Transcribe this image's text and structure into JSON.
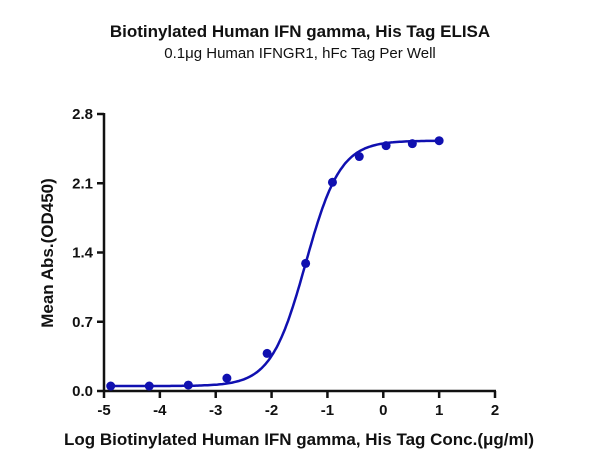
{
  "chart_data": {
    "type": "scatter",
    "title": "Biotinylated Human IFN gamma, His Tag ELISA",
    "subtitle": "0.1μg Human IFNGR1, hFc Tag Per Well",
    "xlabel": "Log Biotinylated Human IFN gamma, His Tag Conc.(μg/ml)",
    "ylabel": "Mean Abs.(OD450)",
    "xlim": [
      -5,
      2
    ],
    "ylim": [
      0,
      2.8
    ],
    "xticks": [
      "-5",
      "-4",
      "-3",
      "-2",
      "-1",
      "0",
      "1",
      "2"
    ],
    "yticks": [
      "0.0",
      "0.7",
      "1.4",
      "2.1",
      "2.8"
    ],
    "grid": false,
    "color": "#1010b0",
    "fit": "sigmoidal curve",
    "x": [
      -4.88,
      -4.19,
      -3.49,
      -2.8,
      -2.08,
      -1.39,
      -0.91,
      -0.43,
      0.05,
      0.52,
      1.0
    ],
    "y": [
      0.05,
      0.05,
      0.06,
      0.13,
      0.38,
      1.29,
      2.11,
      2.37,
      2.48,
      2.5,
      2.53
    ]
  }
}
